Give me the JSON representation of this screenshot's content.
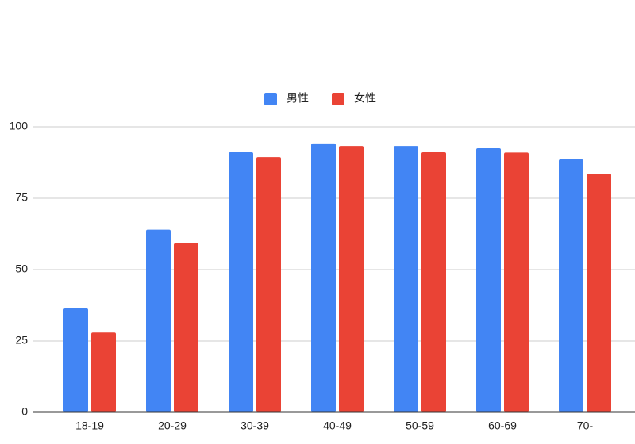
{
  "chart_data": {
    "type": "bar",
    "categories": [
      "18-19",
      "20-29",
      "30-39",
      "40-49",
      "50-59",
      "60-69",
      "70-"
    ],
    "series": [
      {
        "name": "男性",
        "color": "#4285f4",
        "values": [
          36.4,
          64,
          91.1,
          94.2,
          93.3,
          92.5,
          88.6
        ]
      },
      {
        "name": "女性",
        "color": "#ea4335",
        "values": [
          28,
          59.2,
          89.4,
          93.3,
          91.1,
          91,
          83.6
        ]
      }
    ],
    "ylim": [
      0,
      100
    ],
    "yticks": [
      0,
      25,
      50,
      75,
      100
    ],
    "grid": true,
    "legend": "top"
  }
}
